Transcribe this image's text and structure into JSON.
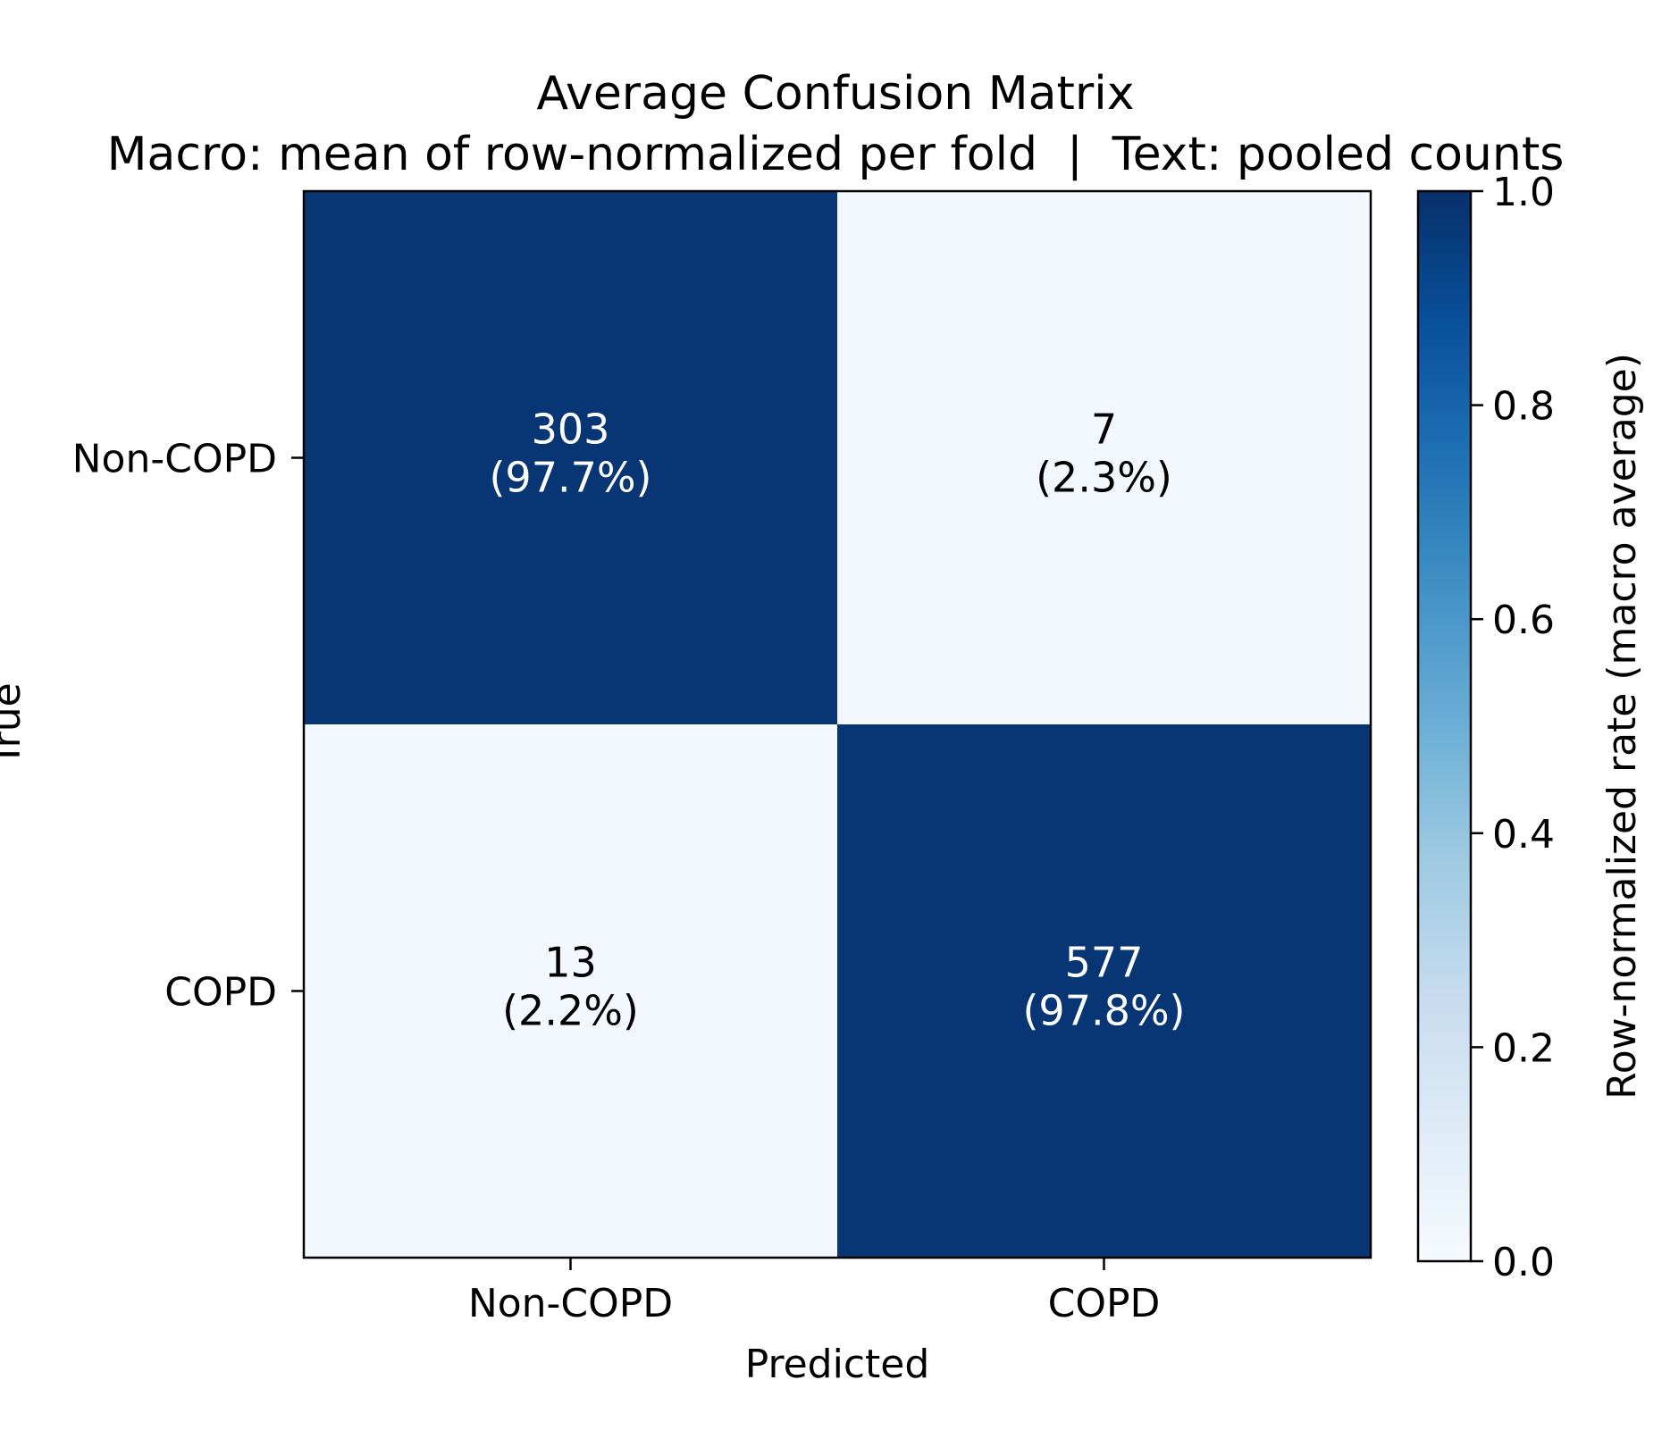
{
  "chart_data": {
    "type": "heatmap",
    "title": "Average Confusion Matrix",
    "subtitle": "Macro: mean of row-normalized per fold  |  Text: pooled counts",
    "xlabel": "Predicted",
    "ylabel": "True",
    "x_categories": [
      "Non-COPD",
      "COPD"
    ],
    "y_categories": [
      "Non-COPD",
      "COPD"
    ],
    "counts": [
      [
        303,
        7
      ],
      [
        13,
        577
      ]
    ],
    "rates": [
      [
        0.977,
        0.023
      ],
      [
        0.022,
        0.978
      ]
    ],
    "cell_labels": [
      [
        "(97.7%)",
        "(2.3%)"
      ],
      [
        "(2.2%)",
        "(97.8%)"
      ]
    ],
    "colorbar": {
      "label": "Row-normalized rate (macro average)",
      "range": [
        0,
        1
      ],
      "ticks": [
        "0.0",
        "0.2",
        "0.4",
        "0.6",
        "0.8",
        "1.0"
      ],
      "colormap": "Blues",
      "low_color": "#f7fbff",
      "high_color": "#08306b"
    }
  }
}
